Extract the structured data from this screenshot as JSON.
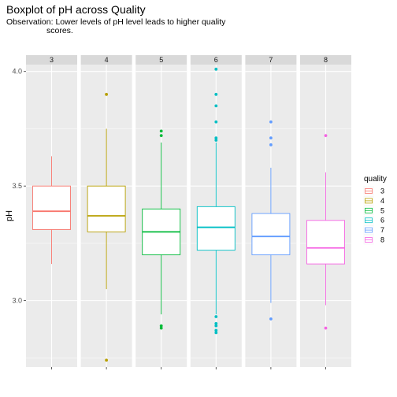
{
  "chart_data": {
    "type": "boxplot",
    "title": "Boxplot of pH across Quality",
    "subtitle_line1": "Observation: Lower levels of pH level leads to higher quality",
    "subtitle_line2": "scores.",
    "ylabel": "pH",
    "xlabel": "",
    "ylim": [
      2.71,
      4.03
    ],
    "y_ticks": [
      "3.0",
      "3.5",
      "4.0"
    ],
    "grid": true,
    "legend": {
      "title": "quality",
      "placement": "right"
    },
    "categories": [
      "3",
      "4",
      "5",
      "6",
      "7",
      "8"
    ],
    "series": [
      {
        "name": "3",
        "color": "#F8766D",
        "min": 3.16,
        "q1": 3.31,
        "median": 3.39,
        "q3": 3.5,
        "max": 3.63,
        "outliers": []
      },
      {
        "name": "4",
        "color": "#B79F00",
        "min": 3.05,
        "q1": 3.3,
        "median": 3.37,
        "q3": 3.5,
        "max": 3.75,
        "outliers": [
          3.9,
          2.74
        ]
      },
      {
        "name": "5",
        "color": "#00BA38",
        "min": 2.94,
        "q1": 3.2,
        "median": 3.3,
        "q3": 3.4,
        "max": 3.69,
        "outliers": [
          3.74,
          3.72,
          2.89,
          2.88
        ]
      },
      {
        "name": "6",
        "color": "#00BFC4",
        "min": 2.94,
        "q1": 3.22,
        "median": 3.32,
        "q3": 3.41,
        "max": 3.69,
        "outliers": [
          4.01,
          3.9,
          3.85,
          3.78,
          3.71,
          3.7,
          2.93,
          2.9,
          2.89,
          2.87,
          2.86
        ]
      },
      {
        "name": "7",
        "color": "#619CFF",
        "min": 2.99,
        "q1": 3.2,
        "median": 3.28,
        "q3": 3.38,
        "max": 3.58,
        "outliers": [
          3.78,
          3.71,
          3.68,
          2.92
        ]
      },
      {
        "name": "8",
        "color": "#F564E3",
        "min": 2.98,
        "q1": 3.16,
        "median": 3.23,
        "q3": 3.35,
        "max": 3.56,
        "outliers": [
          3.72,
          2.88
        ]
      }
    ]
  }
}
